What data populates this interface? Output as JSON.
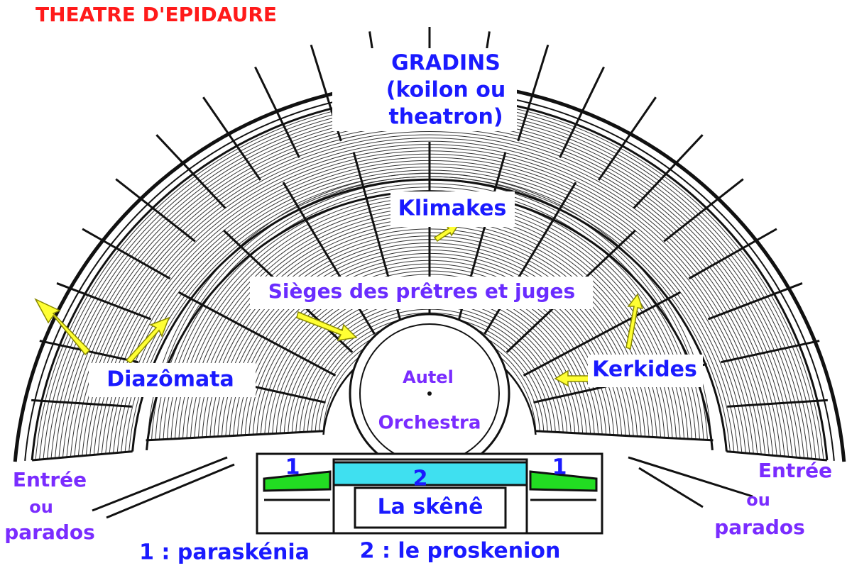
{
  "title": "THEATRE D'EPIDAURE",
  "gradins": [
    "GRADINS",
    "(koilon ou",
    "theatron)"
  ],
  "klimakes": "Klimakes",
  "sieges": "Sièges des prêtres et juges",
  "diazomata": "Diazômata",
  "kerkides": "Kerkides",
  "autel": "Autel",
  "orchestra": "Orchestra",
  "entree_left": [
    "Entrée",
    "ou",
    "parados"
  ],
  "entree_right": [
    "Entrée",
    "ou",
    "parados"
  ],
  "skene": "La skênê",
  "stage_numbers": [
    "1",
    "2",
    "1"
  ],
  "legend": [
    "1 : paraskénia",
    "2 : le proskenion"
  ]
}
